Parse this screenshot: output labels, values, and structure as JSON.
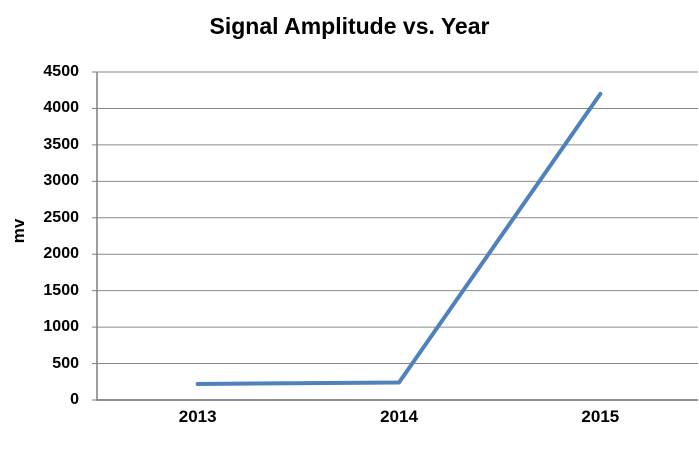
{
  "chart_data": {
    "type": "line",
    "title": "Signal Amplitude vs. Year",
    "categories": [
      "2013",
      "2014",
      "2015"
    ],
    "values": [
      220,
      240,
      4200
    ],
    "xlabel": "",
    "ylabel": "mv",
    "ylim": [
      0,
      4500
    ],
    "yticks": [
      0,
      500,
      1000,
      1500,
      2000,
      2500,
      3000,
      3500,
      4000,
      4500
    ],
    "grid": "horizontal-only",
    "legend": "none",
    "colors": {
      "line": "#4F81BD",
      "gridline": "#8A8A8A",
      "axis": "#7F7F7F",
      "text": "#000000",
      "background": "#FFFFFF"
    }
  }
}
